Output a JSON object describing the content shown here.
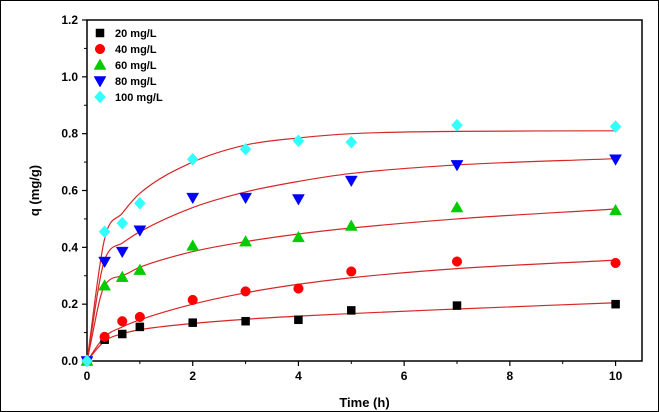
{
  "chart_data": {
    "type": "scatter",
    "title": "",
    "xlabel": "Time (h)",
    "ylabel": "q (mg/g)",
    "xlim": [
      0,
      10.5
    ],
    "ylim": [
      0,
      1.2
    ],
    "x_ticks": [
      "0",
      "2",
      "4",
      "6",
      "8",
      "10"
    ],
    "y_ticks": [
      "0.0",
      "0.2",
      "0.4",
      "0.6",
      "0.8",
      "1.0",
      "1.2"
    ],
    "x_tick_values": [
      0,
      2,
      4,
      6,
      8,
      10
    ],
    "y_tick_values": [
      0,
      0.2,
      0.4,
      0.6,
      0.8,
      1.0,
      1.2
    ],
    "legend_position": "top-left",
    "grid": false,
    "fit_color": "#d62728",
    "x": [
      0,
      0.333,
      0.667,
      1,
      2,
      3,
      4,
      5,
      7,
      10
    ],
    "series": [
      {
        "name": "20 mg/L",
        "marker": "square",
        "color": "#000000",
        "values": [
          0,
          0.075,
          0.095,
          0.12,
          0.135,
          0.14,
          0.145,
          0.178,
          0.195,
          0.2
        ],
        "fit": [
          0,
          0.07,
          0.096,
          0.11,
          0.132,
          0.147,
          0.158,
          0.167,
          0.183,
          0.205
        ]
      },
      {
        "name": "40 mg/L",
        "marker": "circle",
        "color": "#ff0000",
        "values": [
          0,
          0.085,
          0.14,
          0.155,
          0.215,
          0.245,
          0.255,
          0.315,
          0.35,
          0.345
        ],
        "fit": [
          0,
          0.085,
          0.12,
          0.145,
          0.2,
          0.24,
          0.27,
          0.293,
          0.325,
          0.355
        ]
      },
      {
        "name": "60 mg/L",
        "marker": "triangle-up",
        "color": "#00cc00",
        "values": [
          0,
          0.265,
          0.295,
          0.32,
          0.405,
          0.42,
          0.435,
          0.475,
          0.54,
          0.53
        ],
        "fit": [
          0,
          0.265,
          0.3,
          0.33,
          0.385,
          0.42,
          0.447,
          0.468,
          0.5,
          0.535
        ]
      },
      {
        "name": "80 mg/L",
        "marker": "triangle-down",
        "color": "#0000ff",
        "values": [
          0,
          0.35,
          0.385,
          0.46,
          0.575,
          0.575,
          0.57,
          0.635,
          0.69,
          0.71
        ],
        "fit": [
          0,
          0.355,
          0.415,
          0.455,
          0.54,
          0.595,
          0.632,
          0.66,
          0.69,
          0.712
        ]
      },
      {
        "name": "100 mg/L",
        "marker": "diamond",
        "color": "#33ffff",
        "values": [
          0,
          0.455,
          0.485,
          0.555,
          0.71,
          0.745,
          0.775,
          0.77,
          0.83,
          0.825
        ],
        "fit": [
          0,
          0.43,
          0.52,
          0.59,
          0.7,
          0.76,
          0.785,
          0.8,
          0.808,
          0.81
        ]
      }
    ]
  }
}
